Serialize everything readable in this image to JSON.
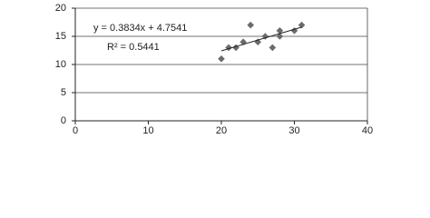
{
  "chart_data": {
    "type": "scatter",
    "x": [
      20,
      21,
      22,
      23,
      24,
      25,
      26,
      27,
      28,
      28,
      30,
      31
    ],
    "series": [
      {
        "color": "#6b6b6b",
        "values": [
          11,
          13,
          13,
          14,
          17,
          14,
          15,
          13,
          15,
          16,
          16,
          17
        ]
      }
    ],
    "xlim": [
      0,
      40
    ],
    "xticks": [
      0,
      10,
      20,
      30,
      40
    ],
    "ylim": [
      0,
      20
    ],
    "yticks": [
      0,
      5,
      10,
      15,
      20
    ],
    "grid": true,
    "trendline": {
      "slope": 0.3834,
      "intercept": 4.7541,
      "equation": "y = 0.3834x + 4.7541",
      "r_squared": "R² = 0.5441"
    }
  }
}
